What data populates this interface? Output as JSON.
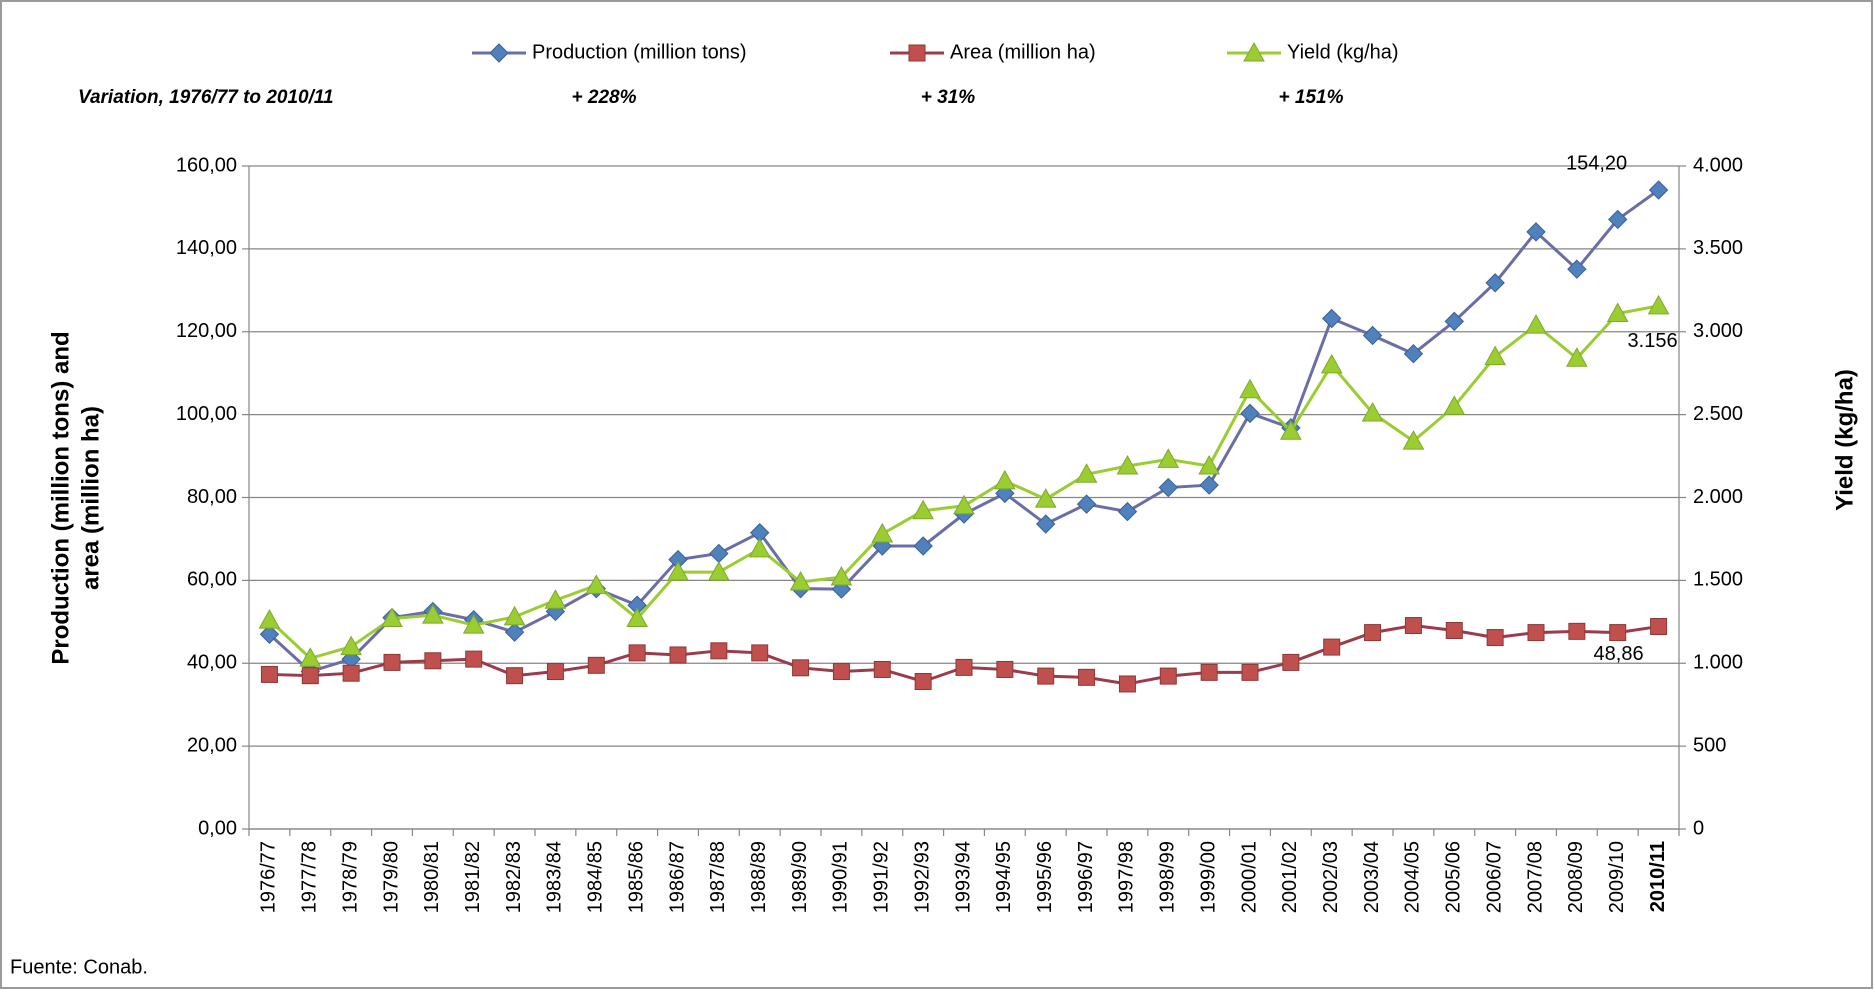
{
  "chart_data": {
    "type": "line",
    "ylabel": [
      "Production (million tons) and",
      "area (million ha)"
    ],
    "y2label": "Yield (kg/ha)",
    "variation": {
      "label": "Variation, 1976/77 to 2010/11",
      "values": [
        "+ 228%",
        "+ 31%",
        "+ 151%"
      ]
    },
    "source": "Fuente: Conab.",
    "categories": [
      "1976/77",
      "1977/78",
      "1978/79",
      "1979/80",
      "1980/81",
      "1981/82",
      "1982/83",
      "1983/84",
      "1984/85",
      "1985/86",
      "1986/87",
      "1987/88",
      "1988/89",
      "1989/90",
      "1990/91",
      "1991/92",
      "1992/93",
      "1993/94",
      "1994/95",
      "1995/96",
      "1996/97",
      "1997/98",
      "1998/99",
      "1999/00",
      "2000/01",
      "2001/02",
      "2002/03",
      "2003/04",
      "2004/05",
      "2005/06",
      "2006/07",
      "2007/08",
      "2008/09",
      "2009/10",
      "2010/11"
    ],
    "series": [
      {
        "name": "Production (million tons)",
        "color": "#4f81bd",
        "line_color": "#6a6da6",
        "marker": "diamond",
        "values": [
          47,
          38,
          41,
          51,
          52.5,
          50.5,
          47.5,
          52.5,
          58,
          54,
          65,
          66.5,
          71.5,
          58,
          57.9,
          68.3,
          68.3,
          76,
          81,
          73.6,
          78.4,
          76.6,
          82.4,
          83,
          100.3,
          96.8,
          123.2,
          119.1,
          114.7,
          122.5,
          131.8,
          144.1,
          135.1,
          147.1,
          154.2
        ],
        "value_labels": [
          null,
          null,
          null,
          null,
          null,
          null,
          null,
          null,
          null,
          null,
          null,
          null,
          null,
          null,
          null,
          null,
          null,
          null,
          null,
          null,
          null,
          null,
          null,
          null,
          null,
          null,
          null,
          null,
          null,
          null,
          null,
          null,
          null,
          null,
          "154,20"
        ]
      },
      {
        "name": "Area (million ha)",
        "color": "#c0504d",
        "line_color": "#9b3b4b",
        "marker": "square",
        "values": [
          37.3,
          37,
          37.6,
          40.2,
          40.6,
          41,
          37,
          38,
          39.5,
          42.5,
          42,
          43,
          42.5,
          38.9,
          38,
          38.5,
          35.6,
          39,
          38.5,
          36.9,
          36.6,
          35,
          36.9,
          37.8,
          37.8,
          40.2,
          43.9,
          47.4,
          49.1,
          47.9,
          46.2,
          47.4,
          47.7,
          47.4,
          48.86
        ],
        "value_labels": [
          null,
          null,
          null,
          null,
          null,
          null,
          null,
          null,
          null,
          null,
          null,
          null,
          null,
          null,
          null,
          null,
          null,
          null,
          null,
          null,
          null,
          null,
          null,
          null,
          null,
          null,
          null,
          null,
          null,
          null,
          null,
          null,
          null,
          null,
          "48,86"
        ]
      },
      {
        "name": "Yield (kg/ha)",
        "color": "#9acd32",
        "line_color": "#9acd32",
        "marker": "triangle",
        "axis": "y2",
        "values": [
          1260,
          1030,
          1100,
          1270,
          1290,
          1230,
          1280,
          1380,
          1470,
          1270,
          1550,
          1550,
          1690,
          1490,
          1520,
          1780,
          1920,
          1950,
          2100,
          1990,
          2140,
          2190,
          2230,
          2190,
          2650,
          2400,
          2800,
          2510,
          2340,
          2550,
          2850,
          3040,
          2840,
          3110,
          3156
        ],
        "value_labels": [
          null,
          null,
          null,
          null,
          null,
          null,
          null,
          null,
          null,
          null,
          null,
          null,
          null,
          null,
          null,
          null,
          null,
          null,
          null,
          null,
          null,
          null,
          null,
          null,
          null,
          null,
          null,
          null,
          null,
          null,
          null,
          null,
          null,
          null,
          "3.156"
        ]
      }
    ],
    "ylim": [
      0,
      160
    ],
    "yticks": [
      {
        "value": 0,
        "label": "0,00"
      },
      {
        "value": 20,
        "label": "20,00"
      },
      {
        "value": 40,
        "label": "40,00"
      },
      {
        "value": 60,
        "label": "60,00"
      },
      {
        "value": 80,
        "label": "80,00"
      },
      {
        "value": 100,
        "label": "100,00"
      },
      {
        "value": 120,
        "label": "120,00"
      },
      {
        "value": 140,
        "label": "140,00"
      },
      {
        "value": 160,
        "label": "160,00"
      }
    ],
    "y2lim": [
      0,
      4000
    ],
    "y2ticks": [
      0,
      500,
      {
        "value": 1000,
        "label": "1.000"
      },
      {
        "value": 1500,
        "label": "1.500"
      },
      {
        "value": 2000,
        "label": "2.000"
      },
      {
        "value": 2500,
        "label": "2.500"
      },
      {
        "value": 3000,
        "label": "3.000"
      },
      {
        "value": 3500,
        "label": "3.500"
      },
      {
        "value": 4000,
        "label": "4.000"
      }
    ],
    "grid": true,
    "legend": "top"
  }
}
